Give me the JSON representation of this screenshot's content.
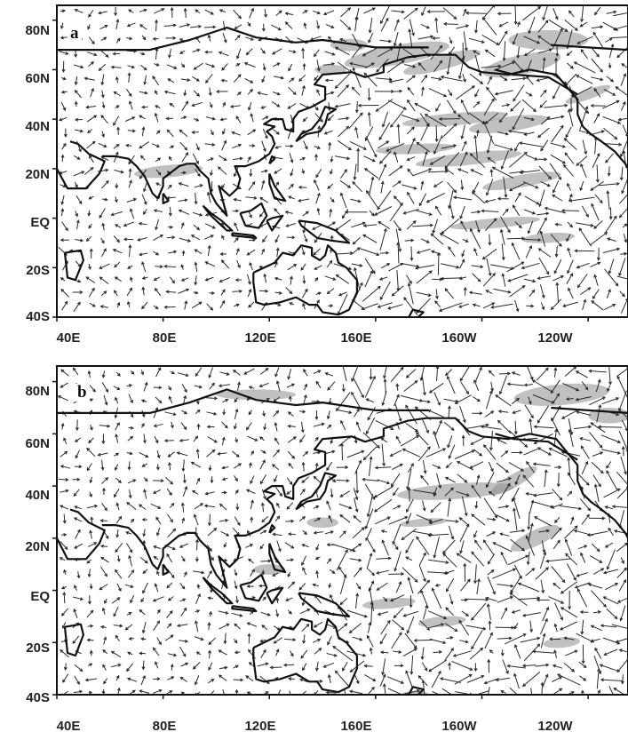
{
  "panels": [
    {
      "label": "a",
      "lat_labels": [
        "80N",
        "60N",
        "40N",
        "20N",
        "EQ",
        "20S",
        "40S"
      ],
      "lon_labels": [
        "40E",
        "80E",
        "120E",
        "160E",
        "160W",
        "120W"
      ]
    },
    {
      "label": "b",
      "lat_labels": [
        "80N",
        "60N",
        "40N",
        "20N",
        "EQ",
        "20S",
        "40S"
      ],
      "lon_labels": [
        "40E",
        "80E",
        "120E",
        "160E",
        "160W",
        "120W"
      ]
    }
  ],
  "colors": {
    "frame": "#111111",
    "coast": "#111111",
    "arrow": "#2a2a2a",
    "shade": "#8c8c8c"
  }
}
